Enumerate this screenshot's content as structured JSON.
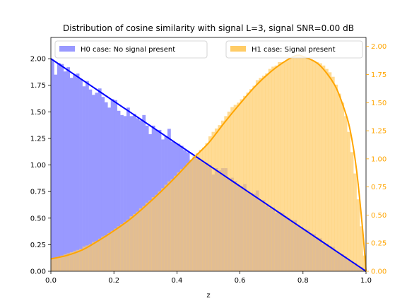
{
  "chart_data": {
    "type": "histogram",
    "title": "Distribution of cosine similarity with signal L=3, signal SNR=0.00 dB",
    "xlabel": "z",
    "xlim": [
      0.0,
      1.0
    ],
    "left_ylim": [
      0.0,
      2.2
    ],
    "right_ylim": [
      0.0,
      2.08
    ],
    "x_ticks": [
      "0.0",
      "0.2",
      "0.4",
      "0.6",
      "0.8",
      "1.0"
    ],
    "left_y_ticks": [
      "0.00",
      "0.25",
      "0.50",
      "0.75",
      "1.00",
      "1.25",
      "1.50",
      "1.75",
      "2.00"
    ],
    "right_y_ticks": [
      "0.00",
      "0.25",
      "0.50",
      "0.75",
      "1.00",
      "1.25",
      "1.50",
      "1.75",
      "2.00"
    ],
    "bins": 100,
    "legend": {
      "h0_label": "H0 case: No signal present",
      "h1_label": "H1 case: Signal present",
      "h0_placement": "upper-left",
      "h1_placement": "upper-right"
    },
    "series": [
      {
        "name": "H0 case: No signal present",
        "axis": "left",
        "style": "histogram",
        "color": "#9999ff",
        "line_color": "#0000ff",
        "theory": "2*(1-z)",
        "bin_values": [
          1.99,
          1.85,
          1.96,
          1.95,
          1.88,
          1.92,
          1.82,
          1.85,
          1.86,
          1.81,
          1.74,
          1.79,
          1.71,
          1.66,
          1.68,
          1.72,
          1.64,
          1.59,
          1.54,
          1.62,
          1.61,
          1.51,
          1.47,
          1.46,
          1.54,
          1.46,
          1.48,
          1.44,
          1.42,
          1.47,
          1.37,
          1.29,
          1.37,
          1.33,
          1.33,
          1.24,
          1.27,
          1.34,
          1.22,
          1.21,
          1.2,
          1.18,
          1.14,
          1.12,
          1.05,
          1.08,
          1.06,
          1.04,
          1.02,
          1.02,
          1.0,
          0.91,
          0.97,
          0.95,
          0.97,
          0.97,
          0.87,
          0.88,
          0.85,
          0.81,
          0.8,
          0.82,
          0.75,
          0.74,
          0.73,
          0.76,
          0.66,
          0.67,
          0.62,
          0.6,
          0.6,
          0.55,
          0.56,
          0.55,
          0.52,
          0.5,
          0.48,
          0.48,
          0.43,
          0.42,
          0.4,
          0.39,
          0.36,
          0.35,
          0.32,
          0.31,
          0.26,
          0.26,
          0.24,
          0.23,
          0.19,
          0.17,
          0.16,
          0.14,
          0.11,
          0.09,
          0.08,
          0.05,
          0.04,
          0.01
        ]
      },
      {
        "name": "H1 case: Signal present",
        "axis": "right",
        "style": "histogram",
        "color": "#ffcc66",
        "line_color": "#ffa500",
        "bin_values": [
          0.11,
          0.12,
          0.13,
          0.14,
          0.15,
          0.16,
          0.17,
          0.18,
          0.19,
          0.2,
          0.22,
          0.23,
          0.24,
          0.26,
          0.27,
          0.29,
          0.31,
          0.32,
          0.34,
          0.36,
          0.38,
          0.4,
          0.42,
          0.44,
          0.46,
          0.49,
          0.51,
          0.53,
          0.56,
          0.58,
          0.61,
          0.63,
          0.66,
          0.68,
          0.71,
          0.74,
          0.77,
          0.8,
          0.82,
          0.85,
          0.88,
          0.91,
          0.93,
          0.96,
          0.99,
          1.02,
          1.05,
          1.08,
          1.1,
          1.14,
          1.2,
          1.24,
          1.27,
          1.3,
          1.34,
          1.38,
          1.42,
          1.46,
          1.48,
          1.5,
          1.53,
          1.56,
          1.59,
          1.62,
          1.65,
          1.7,
          1.72,
          1.74,
          1.76,
          1.8,
          1.82,
          1.83,
          1.86,
          1.86,
          1.87,
          1.89,
          1.9,
          1.91,
          1.92,
          1.92,
          1.91,
          1.9,
          1.88,
          1.87,
          1.86,
          1.85,
          1.83,
          1.8,
          1.77,
          1.73,
          1.66,
          1.58,
          1.5,
          1.38,
          1.24,
          1.06,
          0.87,
          0.64,
          0.4,
          0.14
        ],
        "theory_points": [
          [
            0.0,
            0.11
          ],
          [
            0.05,
            0.14
          ],
          [
            0.1,
            0.19
          ],
          [
            0.15,
            0.27
          ],
          [
            0.2,
            0.36
          ],
          [
            0.25,
            0.46
          ],
          [
            0.3,
            0.58
          ],
          [
            0.35,
            0.71
          ],
          [
            0.4,
            0.85
          ],
          [
            0.45,
            1.0
          ],
          [
            0.5,
            1.14
          ],
          [
            0.55,
            1.32
          ],
          [
            0.6,
            1.49
          ],
          [
            0.65,
            1.65
          ],
          [
            0.7,
            1.78
          ],
          [
            0.75,
            1.88
          ],
          [
            0.78,
            1.92
          ],
          [
            0.8,
            1.91
          ],
          [
            0.85,
            1.84
          ],
          [
            0.9,
            1.66
          ],
          [
            0.93,
            1.45
          ],
          [
            0.95,
            1.25
          ],
          [
            0.97,
            0.9
          ],
          [
            0.99,
            0.35
          ],
          [
            1.0,
            0.0
          ]
        ]
      }
    ]
  }
}
